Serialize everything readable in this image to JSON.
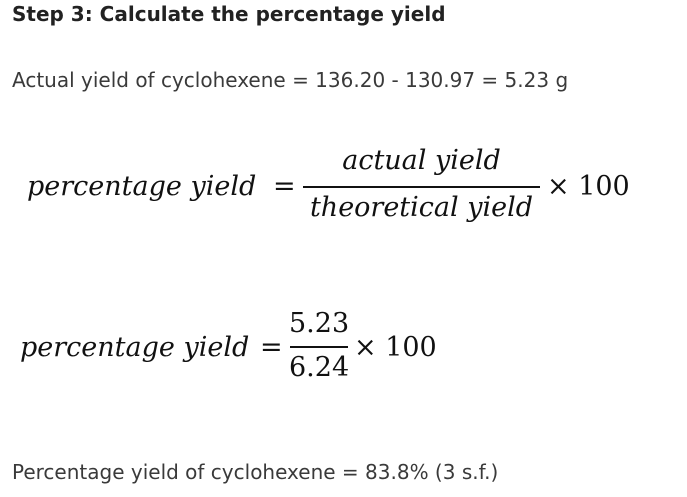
{
  "heading": "Step 3: Calculate the percentage yield",
  "actual_yield_line": "Actual yield of cyclohexene = 136.20 - 130.97 = 5.23 g",
  "equations": [
    {
      "lhs": "percentage yield",
      "equals": "=",
      "numerator": "actual yield",
      "denominator": "theoretical yield",
      "multiplier": "× 100"
    },
    {
      "lhs": "percentage yield",
      "equals": "=",
      "numerator": "5.23",
      "denominator": "6.24",
      "multiplier": "× 100"
    }
  ],
  "result": "Percentage yield of cyclohexene = 83.8% (3 s.f.)"
}
